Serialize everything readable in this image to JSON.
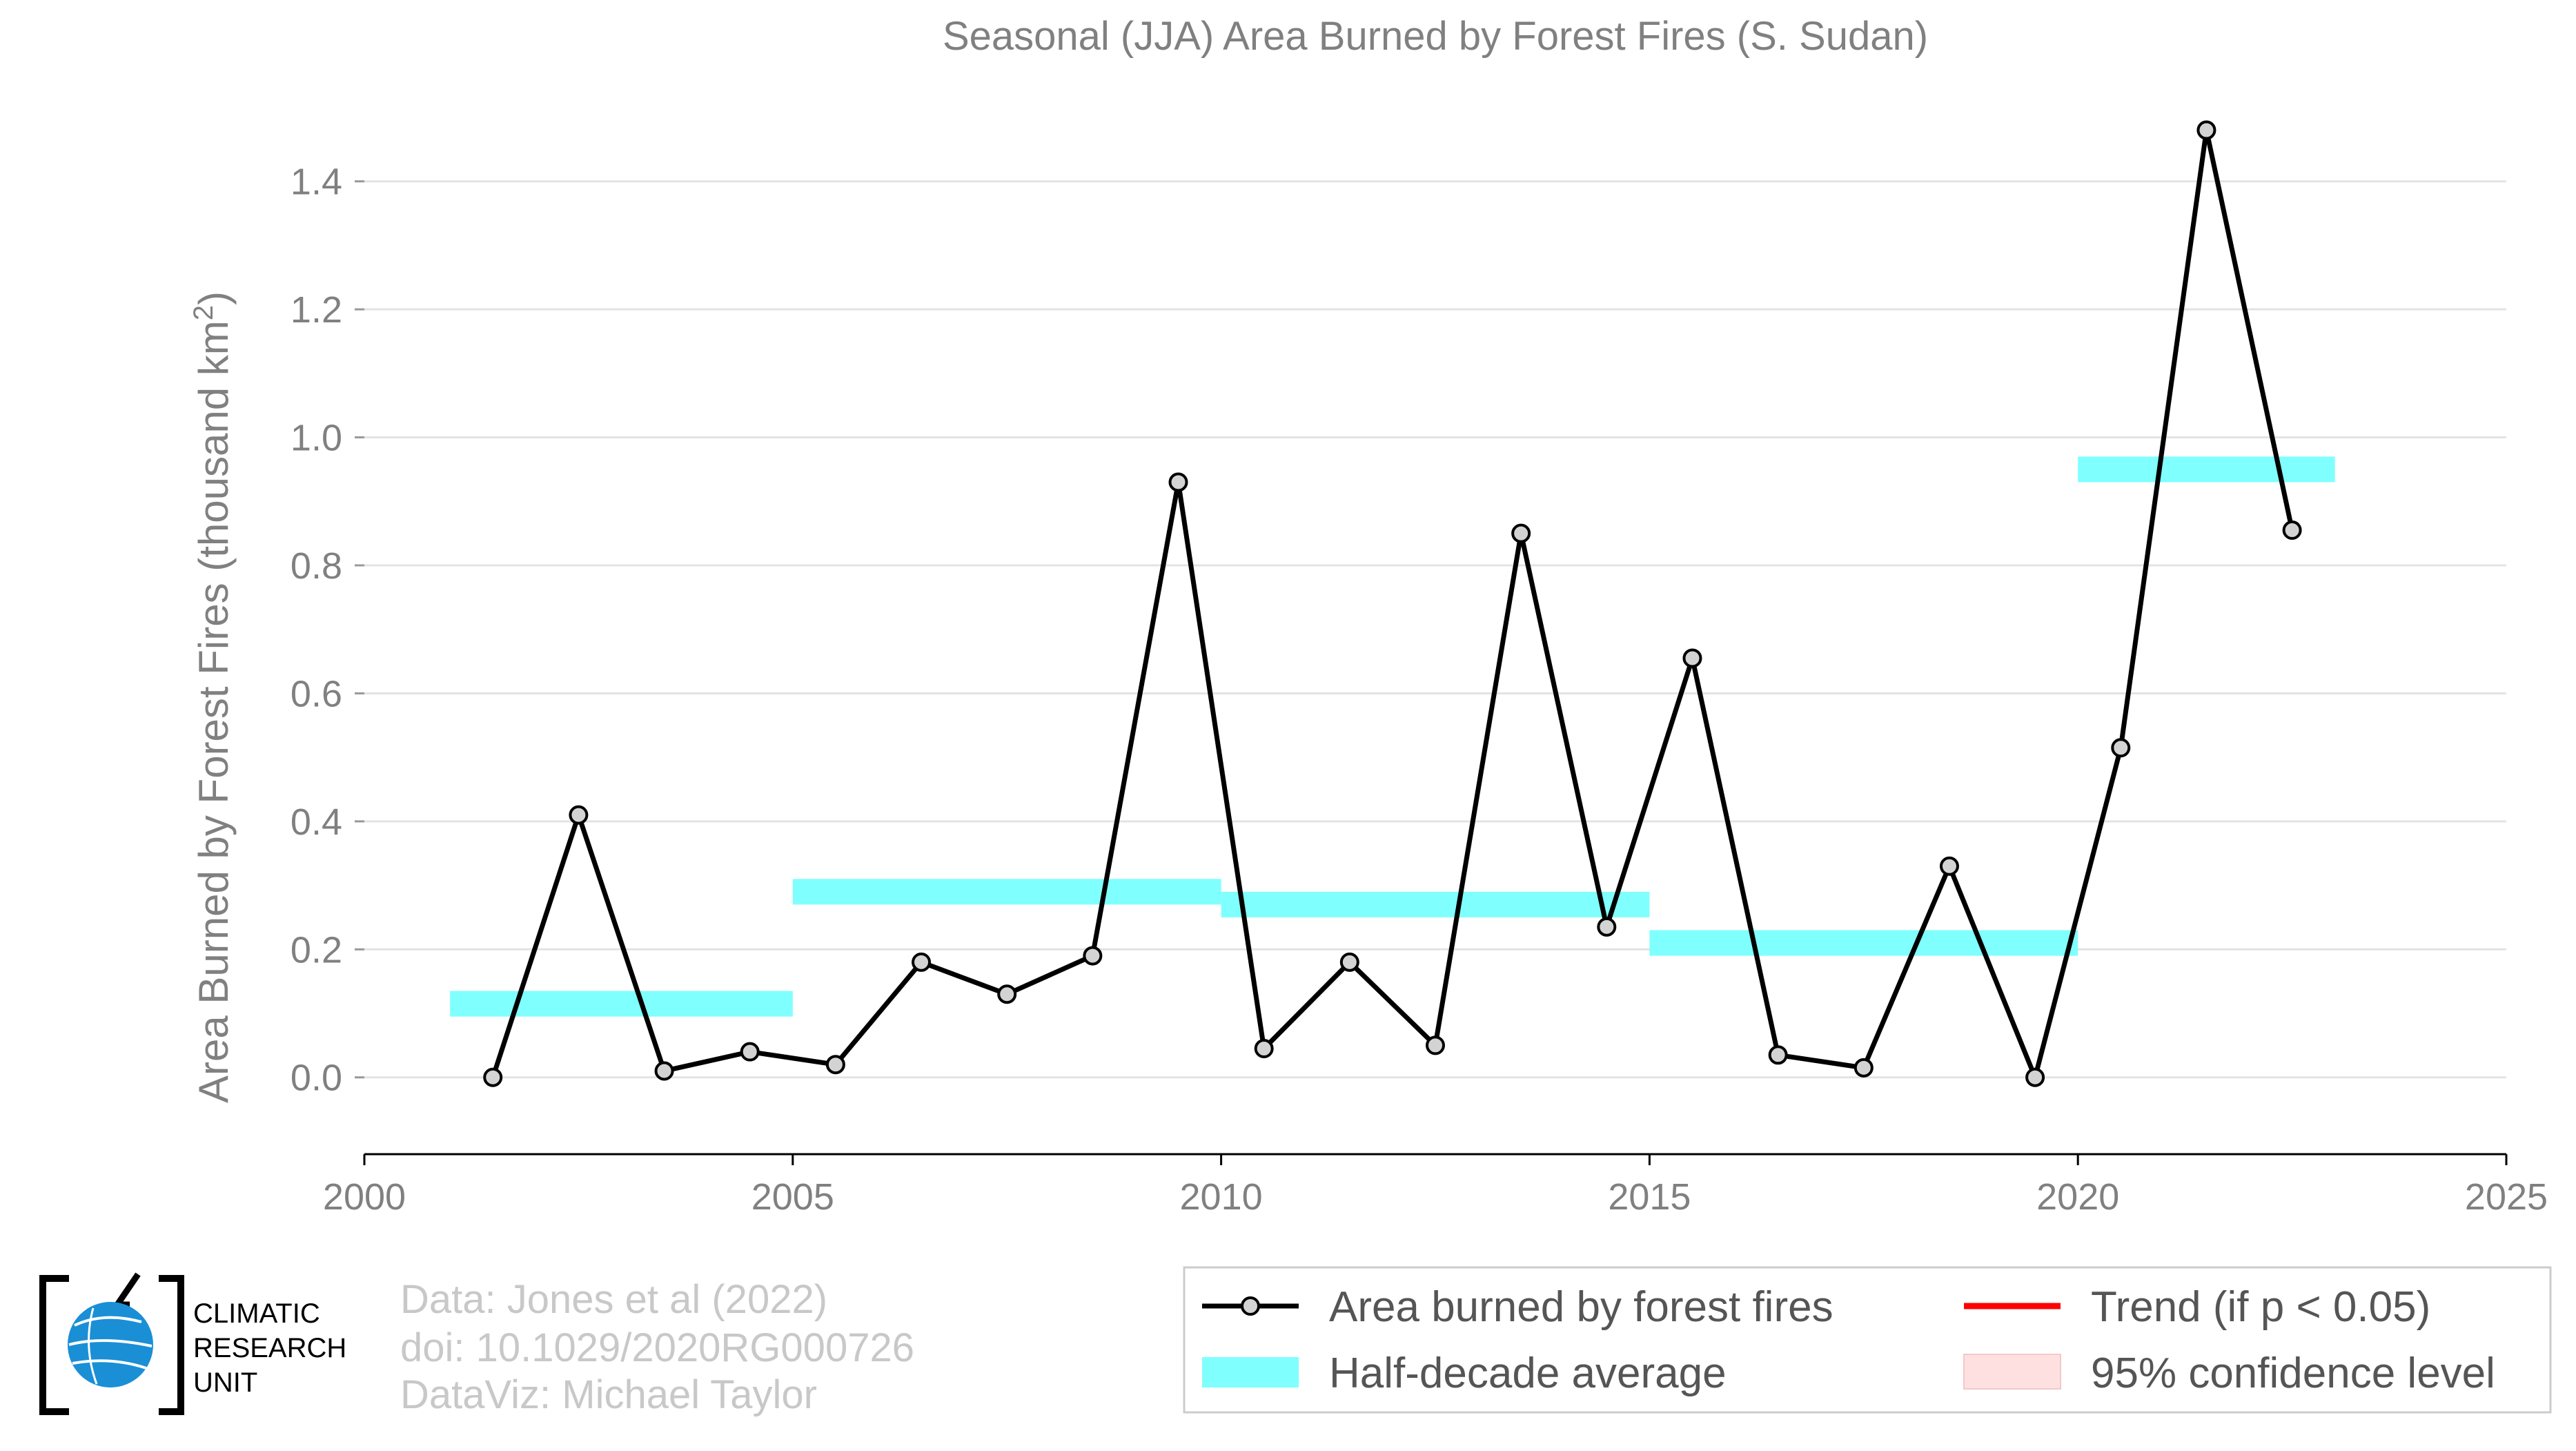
{
  "chart_data": {
    "type": "line",
    "title": "Seasonal (JJA) Area Burned by Forest Fires (S. Sudan)",
    "ylabel": "Area Burned by Forest Fires (thousand km",
    "ylabel_sup": "2",
    "ylabel_end": ")",
    "xlabel": "",
    "xlim": [
      2000,
      2025
    ],
    "ylim": [
      -0.12,
      1.5
    ],
    "x_ticks": [
      2000,
      2005,
      2010,
      2015,
      2020,
      2025
    ],
    "y_ticks": [
      0.0,
      0.2,
      0.4,
      0.6,
      0.8,
      1.0,
      1.2,
      1.4
    ],
    "y_tick_labels": [
      "0.0",
      "0.2",
      "0.4",
      "0.6",
      "0.8",
      "1.0",
      "1.2",
      "1.4"
    ],
    "grid": "horizontal",
    "series": [
      {
        "name": "Area burned by forest fires",
        "color": "#000000",
        "marker_fill": "#d3d3d3",
        "x": [
          2001.5,
          2002.5,
          2003.5,
          2004.5,
          2005.5,
          2006.5,
          2007.5,
          2008.5,
          2009.5,
          2010.5,
          2011.5,
          2012.5,
          2013.5,
          2014.5,
          2015.5,
          2016.5,
          2017.5,
          2018.5,
          2019.5,
          2020.5,
          2021.5,
          2022.5
        ],
        "y": [
          0.0,
          0.41,
          0.01,
          0.04,
          0.02,
          0.18,
          0.13,
          0.19,
          0.93,
          0.045,
          0.18,
          0.05,
          0.85,
          0.235,
          0.655,
          0.035,
          0.015,
          0.33,
          0.0,
          0.515,
          1.48,
          0.855
        ]
      }
    ],
    "half_decade_averages": {
      "name": "Half-decade average",
      "color": "#80ffff",
      "segments": [
        {
          "x0": 2001,
          "x1": 2005,
          "y": 0.115
        },
        {
          "x0": 2005,
          "x1": 2010,
          "y": 0.29
        },
        {
          "x0": 2010,
          "x1": 2015,
          "y": 0.27
        },
        {
          "x0": 2015,
          "x1": 2020,
          "y": 0.21
        },
        {
          "x0": 2020,
          "x1": 2023,
          "y": 0.95
        }
      ]
    },
    "legend": {
      "placement": "bottom-right",
      "items": [
        {
          "label": "Area burned by forest fires",
          "kind": "line-marker",
          "color": "#000000"
        },
        {
          "label": "Trend (if p < 0.05)",
          "kind": "line",
          "color": "#ff0000"
        },
        {
          "label": "Half-decade average",
          "kind": "band",
          "color": "#80ffff"
        },
        {
          "label": "95% confidence level",
          "kind": "band",
          "color": "#ffe0e0"
        }
      ]
    }
  },
  "credits": {
    "lines": [
      "Data: Jones et al (2022)",
      "doi: 10.1029/2020RG000726",
      "DataViz: Michael Taylor"
    ]
  },
  "logo": {
    "lines": [
      "CLIMATIC",
      "RESEARCH",
      "UNIT"
    ],
    "globe_color": "#1a8fd6"
  }
}
